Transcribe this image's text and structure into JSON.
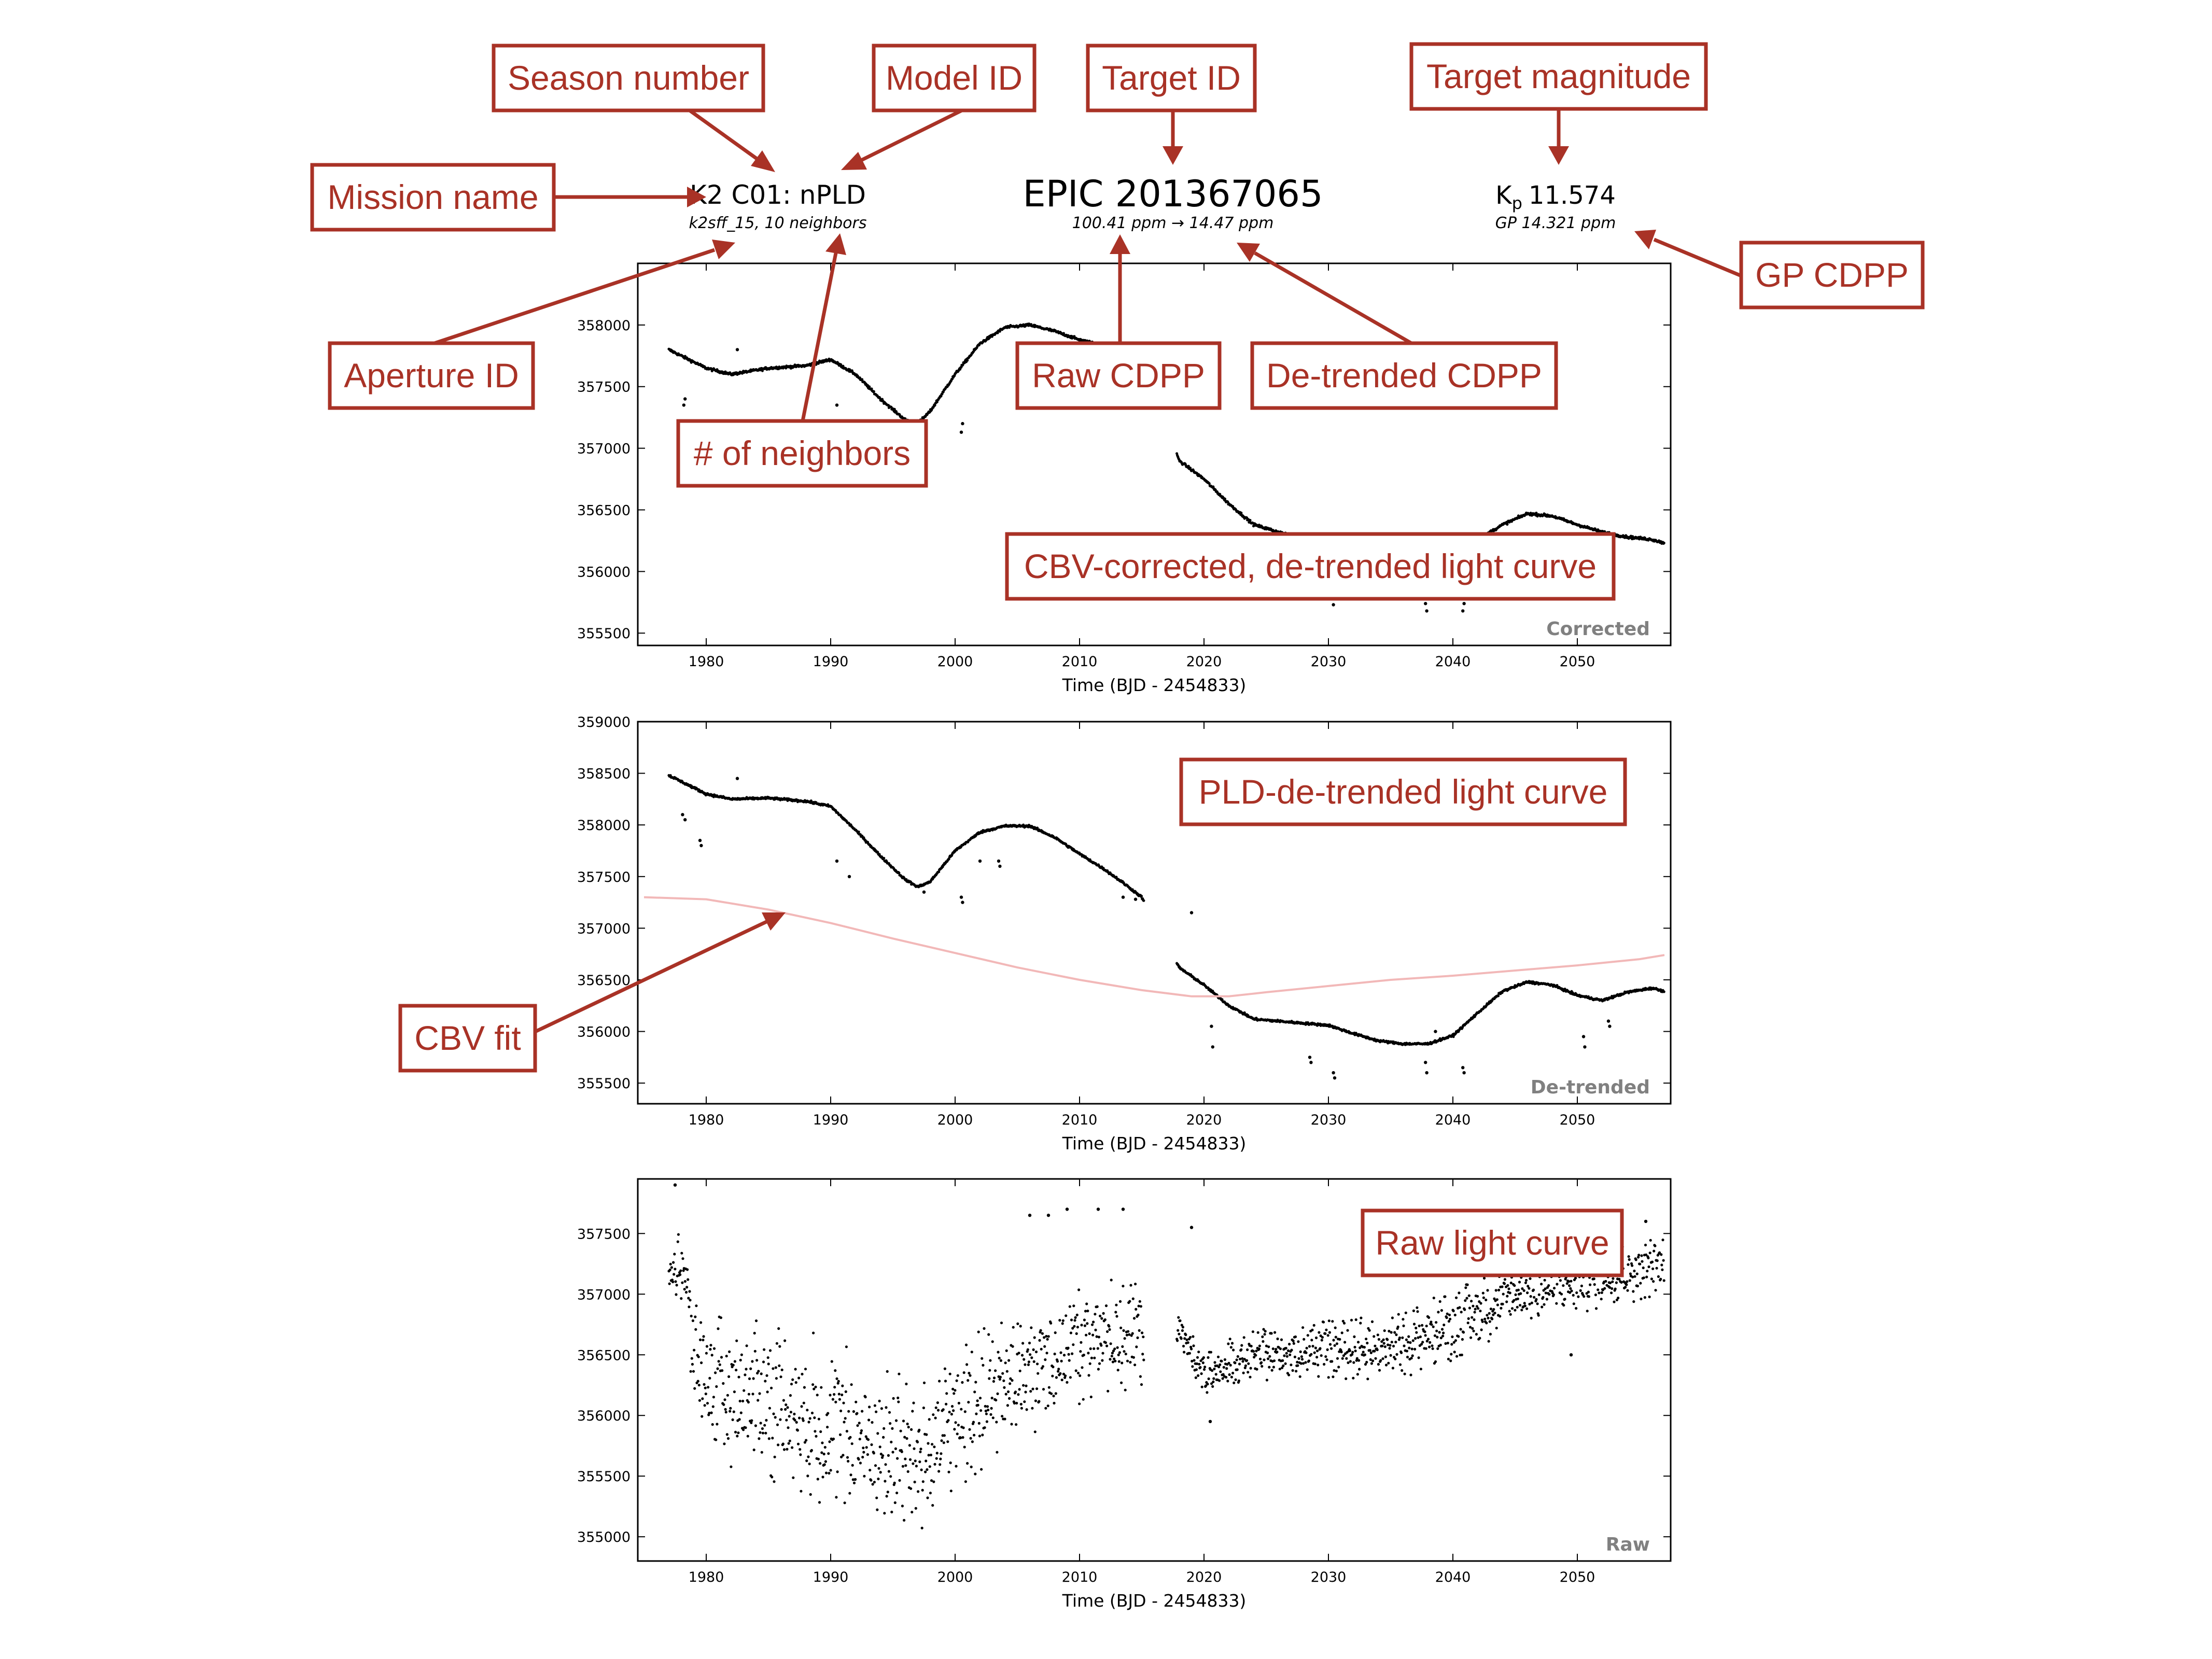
{
  "header": {
    "mission_line": "K2 C01: nPLD",
    "aperture_line": "k2sff_15, 10 neighbors",
    "target_line": "EPIC 201367065",
    "cdpp_line": "100.41 ppm → 14.47 ppm",
    "kp_symbol": "K",
    "kp_sub": "p",
    "kp_value": "11.574",
    "gp_line": "GP 14.321 ppm"
  },
  "callouts": {
    "season_number": "Season number",
    "model_id": "Model ID",
    "target_id": "Target ID",
    "target_magnitude": "Target magnitude",
    "mission_name": "Mission name",
    "gp_cdpp": "GP CDPP",
    "aperture_id": "Aperture ID",
    "raw_cdpp": "Raw CDPP",
    "detrended_cdpp": "De-trended CDPP",
    "num_neighbors": "# of neighbors",
    "cbv_corrected": "CBV-corrected, de-trended light curve",
    "pld_detrended": "PLD-de-trended light curve",
    "cbv_fit": "CBV fit",
    "raw_light_curve": "Raw light curve"
  },
  "colors": {
    "callout": "#a93226",
    "points": "#000000",
    "cbv_fit": "#f2b8b8",
    "panel_tag": "#808080"
  },
  "chart_data": [
    {
      "type": "scatter",
      "panel_tag": "Corrected",
      "xlabel": "Time (BJD - 2454833)",
      "ylabel": "",
      "xlim": [
        1974.5,
        2057.5
      ],
      "ylim": [
        355400,
        358500
      ],
      "x_ticks": [
        1980,
        1990,
        2000,
        2010,
        2020,
        2030,
        2040,
        2050
      ],
      "y_ticks": [
        355500,
        356000,
        356500,
        357000,
        357500,
        358000
      ],
      "series": [
        {
          "trend": {
            "x": [
              1977,
              1980,
              1982,
              1985,
              1988,
              1990,
              1992,
              1994,
              1996,
              1997,
              1998,
              2000,
              2002,
              2004,
              2006,
              2008,
              2010,
              2012,
              2013.5,
              2015,
              2018,
              2020,
              2022,
              2024,
              2026,
              2028,
              2030,
              2032,
              2034,
              2036,
              2038,
              2040,
              2042,
              2044,
              2046,
              2048,
              2050,
              2052,
              2054,
              2056,
              2057
            ],
            "y": [
              357800,
              357650,
              357600,
              357650,
              357670,
              357720,
              357600,
              357400,
              357230,
              357200,
              357300,
              357600,
              357850,
              357980,
              358000,
              357950,
              357880,
              357830,
              357800,
              357780,
              356900,
              356750,
              356550,
              356380,
              356320,
              356260,
              356240,
              356220,
              356210,
              356200,
              356190,
              356210,
              356260,
              356380,
              356470,
              356450,
              356380,
              356320,
              356280,
              356260,
              356230
            ]
          },
          "gap": [
            2015.2,
            2017.8
          ],
          "outliers": [
            [
              1978.3,
              357400
            ],
            [
              1978.2,
              357350
            ],
            [
              1982.5,
              357800
            ],
            [
              1990.5,
              357350
            ],
            [
              1997.5,
              357150
            ],
            [
              2000.5,
              357130
            ],
            [
              2000.6,
              357200
            ],
            [
              2025.5,
              356100
            ],
            [
              2030.4,
              355730
            ],
            [
              2037.8,
              355740
            ],
            [
              2037.9,
              355680
            ],
            [
              2040.8,
              355680
            ],
            [
              2040.9,
              355740
            ],
            [
              2048.5,
              356150
            ]
          ]
        }
      ]
    },
    {
      "type": "scatter",
      "panel_tag": "De-trended",
      "xlabel": "Time (BJD - 2454833)",
      "ylabel": "",
      "xlim": [
        1974.5,
        2057.5
      ],
      "ylim": [
        355300,
        359000
      ],
      "x_ticks": [
        1980,
        1990,
        2000,
        2010,
        2020,
        2030,
        2040,
        2050
      ],
      "y_ticks": [
        355500,
        356000,
        356500,
        357000,
        357500,
        358000,
        358500,
        359000
      ],
      "series": [
        {
          "name": "",
          "trend": {
            "x": [
              1977,
              1980,
              1982,
              1985,
              1988,
              1990,
              1992,
              1994,
              1996,
              1997,
              1998,
              2000,
              2002,
              2004,
              2006,
              2008,
              2010,
              2012,
              2013.5,
              2015,
              2018,
              2020,
              2022,
              2024,
              2026,
              2028,
              2030,
              2032,
              2034,
              2036,
              2038,
              2040,
              2042,
              2044,
              2046,
              2048,
              2050,
              2052,
              2054,
              2056,
              2057
            ],
            "y": [
              358480,
              358300,
              358250,
              358260,
              358230,
              358180,
              357950,
              357700,
              357470,
              357400,
              357450,
              357750,
              357930,
              357990,
              357990,
              357880,
              357720,
              357570,
              357440,
              357300,
              356620,
              356450,
              356250,
              356120,
              356100,
              356080,
              356060,
              355980,
              355910,
              355880,
              355880,
              355960,
              356180,
              356390,
              356480,
              356450,
              356350,
              356300,
              356380,
              356420,
              356390
            ]
          },
          "gap": [
            2015.2,
            2017.8
          ],
          "outliers": [
            [
              1978.1,
              358100
            ],
            [
              1978.3,
              358050
            ],
            [
              1979.5,
              357850
            ],
            [
              1979.6,
              357800
            ],
            [
              1982.5,
              358450
            ],
            [
              1990.5,
              357650
            ],
            [
              1991.5,
              357500
            ],
            [
              1997.5,
              357350
            ],
            [
              2000.5,
              357300
            ],
            [
              2000.6,
              357250
            ],
            [
              2002.0,
              357650
            ],
            [
              2003.5,
              357650
            ],
            [
              2003.6,
              357600
            ],
            [
              2013.5,
              357300
            ],
            [
              2014.5,
              357280
            ],
            [
              2019.0,
              357150
            ],
            [
              2020.6,
              356050
            ],
            [
              2020.7,
              355850
            ],
            [
              2028.5,
              355750
            ],
            [
              2028.6,
              355700
            ],
            [
              2030.4,
              355600
            ],
            [
              2030.5,
              355550
            ],
            [
              2037.8,
              355700
            ],
            [
              2037.9,
              355600
            ],
            [
              2038.6,
              356000
            ],
            [
              2040.8,
              355650
            ],
            [
              2040.9,
              355600
            ],
            [
              2050.5,
              355950
            ],
            [
              2050.6,
              355850
            ],
            [
              2052.5,
              356100
            ],
            [
              2052.6,
              356050
            ]
          ]
        },
        {
          "name": "",
          "role": "cbv_fit",
          "x": [
            1975,
            1980,
            1985,
            1990,
            1995,
            2000,
            2005,
            2010,
            2015,
            2019,
            2022,
            2025,
            2030,
            2035,
            2040,
            2045,
            2050,
            2055,
            2057
          ],
          "y": [
            357300,
            357280,
            357180,
            357050,
            356900,
            356760,
            356620,
            356500,
            356400,
            356340,
            356340,
            356380,
            356440,
            356500,
            356540,
            356590,
            356640,
            356700,
            356740
          ]
        }
      ]
    },
    {
      "type": "scatter",
      "panel_tag": "Raw",
      "xlabel": "Time (BJD - 2454833)",
      "ylabel": "",
      "xlim": [
        1974.5,
        2057.5
      ],
      "ylim": [
        354800,
        357950
      ],
      "x_ticks": [
        1980,
        1990,
        2000,
        2010,
        2020,
        2030,
        2040,
        2050
      ],
      "y_ticks": [
        355000,
        355500,
        356000,
        356500,
        357000,
        357500
      ],
      "series": [
        {
          "trend": {
            "x": [
              1977,
              1978.2,
              1979,
              1981,
              1985,
              1990,
              1995,
              1998,
              2000,
              2005,
              2010,
              2015,
              2018,
              2020,
              2021,
              2022,
              2025,
              2030,
              2035,
              2040,
              2045,
              2050,
              2055,
              2057
            ],
            "y": [
              357150,
              357250,
              356500,
              356200,
              356150,
              355900,
              355700,
              355650,
              356000,
              356300,
              356600,
              356700,
              356700,
              356350,
              356300,
              356450,
              356500,
              356550,
              356550,
              356750,
              357000,
              357100,
              357200,
              357250
            ]
          },
          "spread": {
            "x": [
              1977,
              1979,
              1990,
              1995,
              1998,
              2005,
              2015,
              2018,
              2022,
              2040,
              2057
            ],
            "y": [
              80,
              600,
              750,
              700,
              650,
              550,
              500,
              200,
              200,
              300,
              250
            ]
          },
          "gap": [
            2015.2,
            2017.8
          ],
          "outliers": [
            [
              1977.5,
              357900
            ],
            [
              2006.0,
              357650
            ],
            [
              2007.5,
              357650
            ],
            [
              2009.0,
              357700
            ],
            [
              2011.5,
              357700
            ],
            [
              2013.5,
              357700
            ],
            [
              2019.0,
              357550
            ],
            [
              2020.5,
              355950
            ],
            [
              2049.5,
              356500
            ],
            [
              2055.5,
              357600
            ]
          ]
        }
      ]
    }
  ]
}
